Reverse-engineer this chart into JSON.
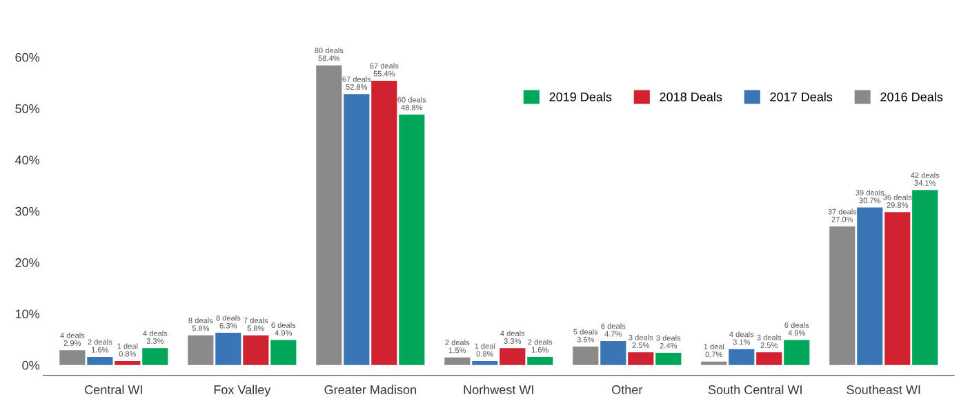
{
  "chart_data": {
    "type": "bar",
    "categories": [
      "Central WI",
      "Fox Valley",
      "Greater Madison",
      "Norhwest WI",
      "Other",
      "South Central WI",
      "Southeast WI"
    ],
    "series": [
      {
        "name": "2016 Deals",
        "color": "#8a8a8a",
        "values": [
          2.9,
          5.8,
          58.4,
          1.5,
          3.6,
          0.7,
          27.0
        ],
        "value_labels": [
          "4 deals\n2.9%",
          "8 deals\n5.8%",
          "80 deals\n58.4%",
          "2 deals\n1.5%",
          "5 deals\n3.6%",
          "1 deal\n0.7%",
          "37 deals\n27.0%"
        ]
      },
      {
        "name": "2017 Deals",
        "color": "#3a76b5",
        "values": [
          1.6,
          6.3,
          52.8,
          0.8,
          4.7,
          3.1,
          30.7
        ],
        "value_labels": [
          "2 deals\n1.6%",
          "8 deals\n6.3%",
          "67 deals\n52.8%",
          "1 deal\n0.8%",
          "6 deals\n4.7%",
          "4 deals\n3.1%",
          "39 deals\n30.7%"
        ]
      },
      {
        "name": "2018 Deals",
        "color": "#d12230",
        "values": [
          0.8,
          5.8,
          55.4,
          3.3,
          2.5,
          2.5,
          29.8
        ],
        "value_labels": [
          "1 deal\n0.8%",
          "7 deals\n5.8%",
          "67 deals\n55.4%",
          "4 deals\n3.3%",
          "3 deals\n2.5%",
          "3 deals\n2.5%",
          "36 deals\n29.8%"
        ]
      },
      {
        "name": "2019 Deals",
        "color": "#00a65a",
        "values": [
          3.3,
          4.9,
          48.8,
          1.6,
          2.4,
          4.9,
          34.1
        ],
        "value_labels": [
          "4 deals\n3.3%",
          "6 deals\n4.9%",
          "60 deals\n48.8%",
          "2 deals\n1.6%",
          "3 deals\n2.4%",
          "6 deals\n4.9%",
          "42 deals\n34.1%"
        ]
      }
    ],
    "ylim": [
      -2,
      60
    ],
    "yticks": [
      {
        "value": 0,
        "label": "0%"
      },
      {
        "value": 10,
        "label": "10%"
      },
      {
        "value": 20,
        "label": "20%"
      },
      {
        "value": 30,
        "label": "30%"
      },
      {
        "value": 40,
        "label": "40%"
      },
      {
        "value": 50,
        "label": "50%"
      },
      {
        "value": 60,
        "label": "60%"
      }
    ],
    "grid": false,
    "legend": "top right"
  }
}
